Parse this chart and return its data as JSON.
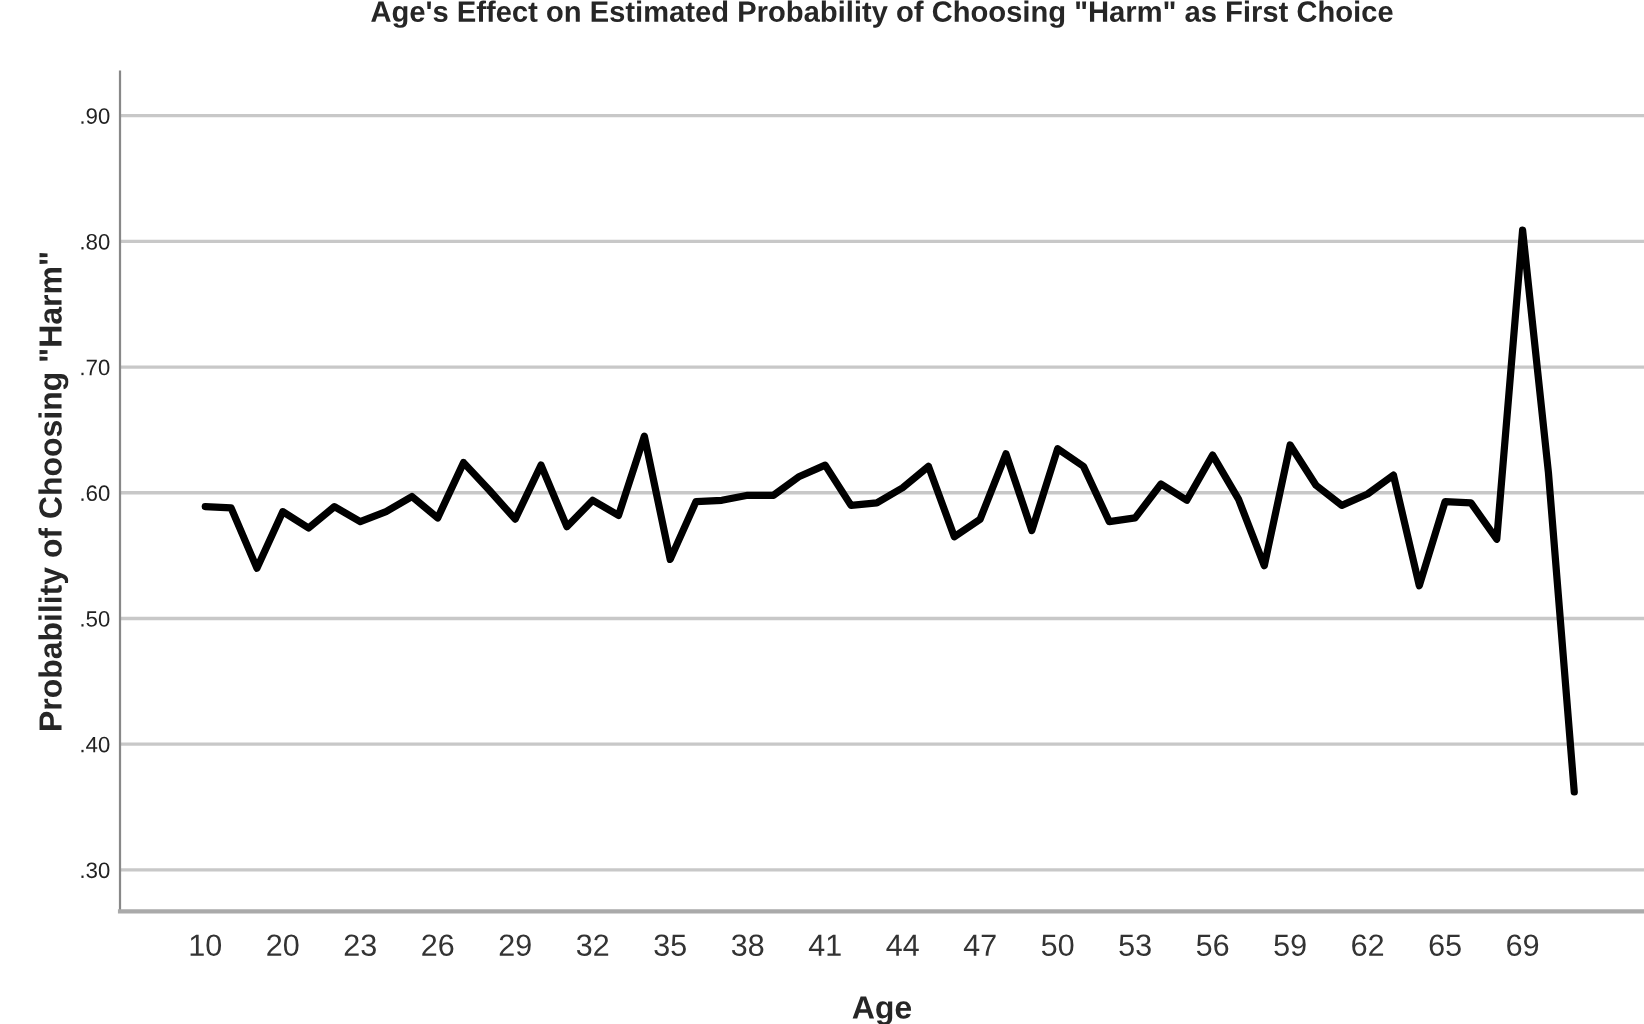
{
  "chart_data": {
    "type": "line",
    "title": "Age's Effect on Estimated Probability of Choosing \"Harm\" as First Choice",
    "xlabel": "Age",
    "ylabel": "Probability of Choosing \"Harm\"",
    "categories": [
      "10",
      null,
      null,
      "20",
      null,
      null,
      "23",
      null,
      null,
      "26",
      null,
      null,
      "29",
      null,
      null,
      "32",
      null,
      null,
      "35",
      null,
      null,
      "38",
      null,
      null,
      "41",
      null,
      null,
      "44",
      null,
      null,
      "47",
      null,
      null,
      "50",
      null,
      null,
      "53",
      null,
      null,
      "56",
      null,
      null,
      "59",
      null,
      null,
      "62",
      null,
      null,
      "65",
      null,
      null,
      "69",
      null,
      null
    ],
    "series": [
      {
        "color": "#000000",
        "values": [
          0.589,
          0.588,
          0.54,
          0.585,
          0.572,
          0.589,
          0.577,
          0.585,
          0.597,
          0.58,
          0.624,
          0.602,
          0.579,
          0.622,
          0.573,
          0.594,
          0.582,
          0.645,
          0.547,
          0.593,
          0.594,
          0.598,
          0.598,
          0.613,
          0.622,
          0.59,
          0.592,
          0.604,
          0.621,
          0.565,
          0.579,
          0.631,
          0.57,
          0.635,
          0.621,
          0.577,
          0.58,
          0.607,
          0.594,
          0.63,
          0.595,
          0.542,
          0.638,
          0.606,
          0.59,
          0.599,
          0.614,
          0.526,
          0.593,
          0.592,
          0.563,
          0.809,
          0.616,
          0.362
        ]
      }
    ],
    "ylim": [
      0.267,
      0.935
    ],
    "yticks": [
      {
        "value": 0.3,
        "label": ".30"
      },
      {
        "value": 0.4,
        "label": ".40"
      },
      {
        "value": 0.5,
        "label": ".50"
      },
      {
        "value": 0.6,
        "label": ".60"
      },
      {
        "value": 0.7,
        "label": ".70"
      },
      {
        "value": 0.8,
        "label": ".80"
      },
      {
        "value": 0.9,
        "label": ".90"
      }
    ],
    "grid": "y",
    "legend": false,
    "line_style": "solid",
    "marker": "none"
  }
}
